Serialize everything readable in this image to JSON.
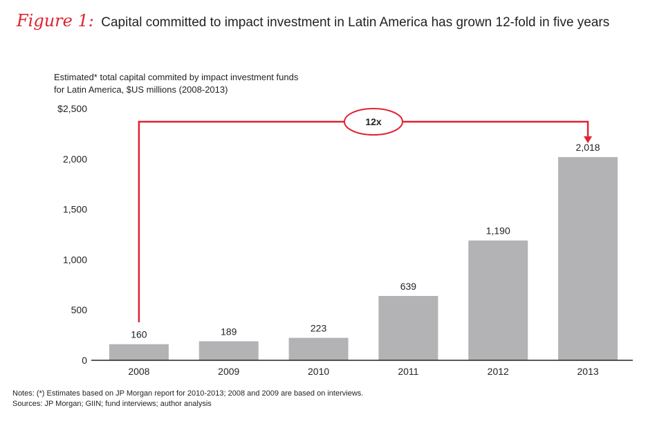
{
  "figure": {
    "label": "Figure 1:",
    "title": "Capital committed to impact investment in Latin America has grown 12-fold in five years"
  },
  "chart_data": {
    "type": "bar",
    "subtitle_lines": [
      "Estimated* total capital commited by impact investment funds",
      "for Latin America, $US millions (2008-2013)"
    ],
    "categories": [
      "2008",
      "2009",
      "2010",
      "2011",
      "2012",
      "2013"
    ],
    "values": [
      160,
      189,
      223,
      639,
      1190,
      2018
    ],
    "value_labels": [
      "160",
      "189",
      "223",
      "639",
      "1,190",
      "2,018"
    ],
    "yticks": [
      {
        "value": 0,
        "label": "0"
      },
      {
        "value": 500,
        "label": "500"
      },
      {
        "value": 1000,
        "label": "1,000"
      },
      {
        "value": 1500,
        "label": "1,500"
      },
      {
        "value": 2000,
        "label": "2,000"
      },
      {
        "value": 2500,
        "label": "$2,500"
      }
    ],
    "ylim": [
      0,
      2500
    ],
    "bar_color": "#b3b3b5",
    "grid": false,
    "annotation": {
      "text": "12x",
      "from": "2008",
      "to": "2013",
      "color": "#e0212e"
    }
  },
  "notes": [
    "Notes: (*) Estimates based on JP Morgan report for 2010-2013; 2008 and 2009 are based on interviews.",
    "Sources: JP Morgan; GIIN; fund interviews; author analysis"
  ]
}
